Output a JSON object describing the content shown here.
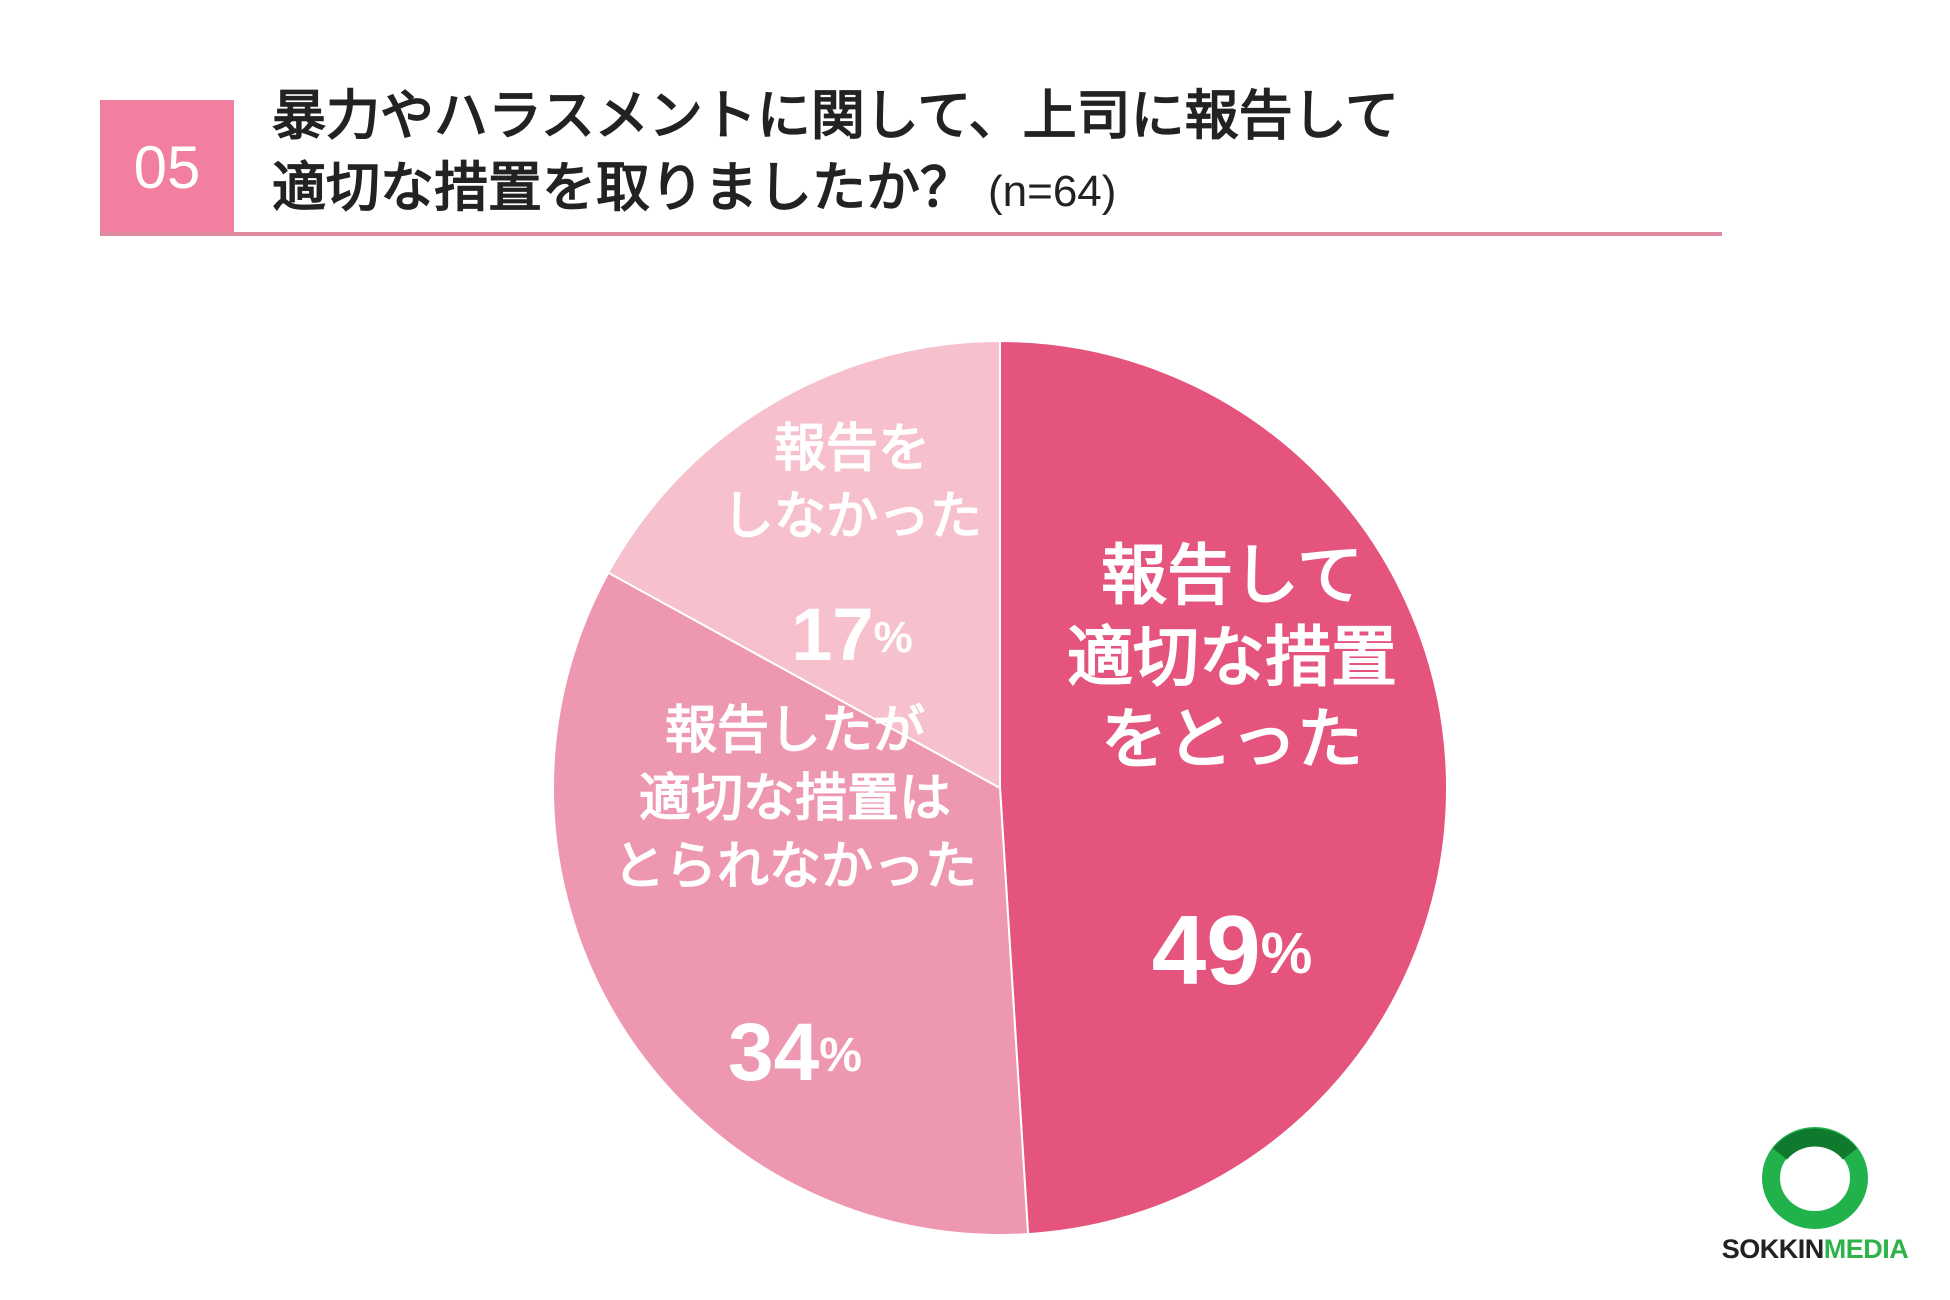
{
  "question": {
    "number": "05",
    "title_line1": "暴力やハラスメントに関して、上司に報告して",
    "title_line2": "適切な措置を取りましたか？",
    "sample": "(n=64)"
  },
  "chart_data": {
    "type": "pie",
    "slices": [
      {
        "label_lines": [
          "報告して",
          "適切な措置",
          "をとった"
        ],
        "value": 49,
        "value_text": "49",
        "unit": "%",
        "color": "#e4547c"
      },
      {
        "label_lines": [
          "報告したが",
          "適切な措置は",
          "とられなかった"
        ],
        "value": 34,
        "value_text": "34",
        "unit": "%",
        "color": "#ee97b0"
      },
      {
        "label_lines": [
          "報告を",
          "しなかった"
        ],
        "value": 17,
        "value_text": "17",
        "unit": "%",
        "color": "#f7c0cd"
      }
    ],
    "start": "12 o'clock",
    "direction": "clockwise"
  },
  "logo": {
    "text_dark": "SOKKIN",
    "text_green": "MEDIA",
    "ring_color": "#22b24c"
  }
}
